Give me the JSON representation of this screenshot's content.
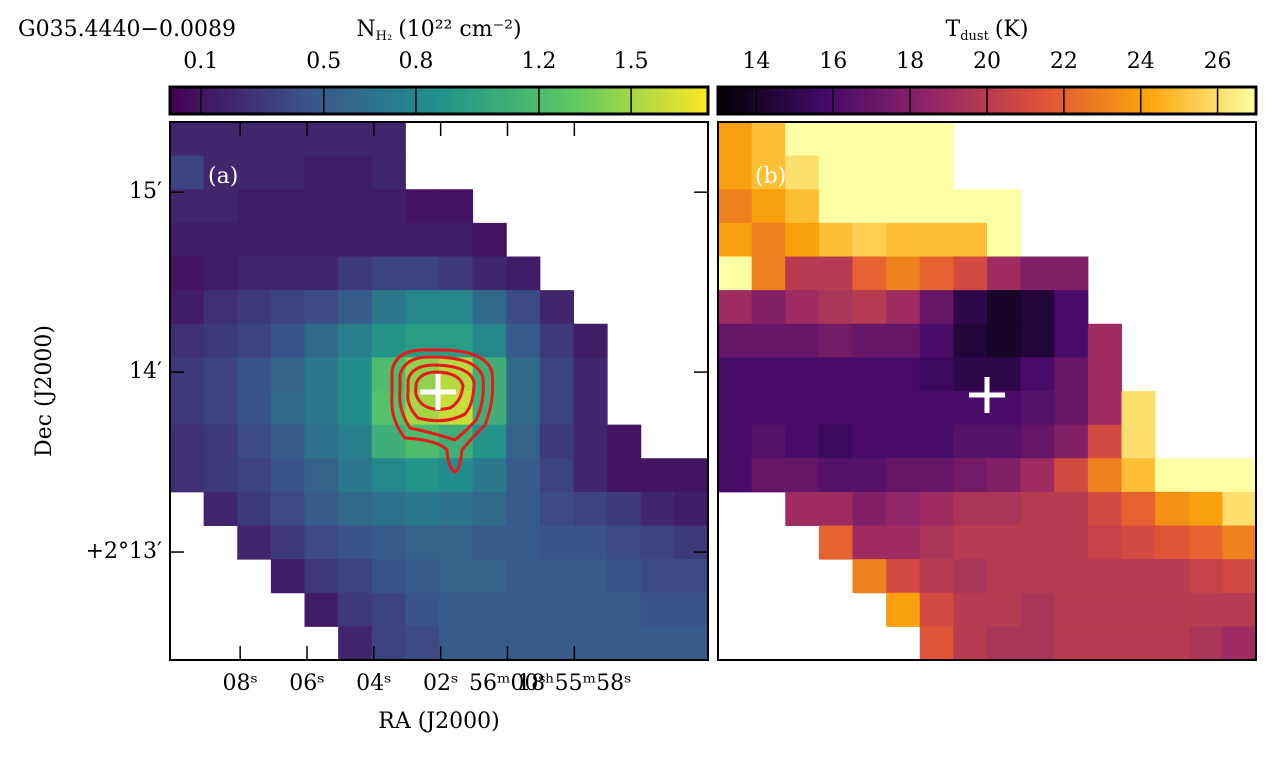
{
  "chart_data": [
    {
      "type": "heatmap",
      "title": "G035.4440−0.0089",
      "panel_label": "(a)",
      "colormap": "viridis",
      "clim": [
        0,
        1.75
      ],
      "colorbar": {
        "label_main": "N",
        "label_sub": "H₂",
        "label_tail": "(10²² cm⁻²)",
        "ticks": [
          0.1,
          0.5,
          0.8,
          1.2,
          1.5
        ]
      },
      "xlabel": "RA (J2000)",
      "ylabel": "Dec (J2000)",
      "xlim": [
        10.1,
        -6.0
      ],
      "ylim": [
        12.4,
        15.39
      ],
      "xticks": [
        {
          "value": 8,
          "label": "08ˢ"
        },
        {
          "value": 6,
          "label": "06ˢ"
        },
        {
          "value": 4,
          "label": "04ˢ"
        },
        {
          "value": 2,
          "label": "02ˢ"
        },
        {
          "value": 0,
          "label": "56ᵐ00ˢ"
        },
        {
          "value": -2,
          "label": "18ʰ55ᵐ58ˢ"
        }
      ],
      "yticks": [
        {
          "value": 15,
          "label": "15′"
        },
        {
          "value": 14,
          "label": "14′"
        },
        {
          "value": 13,
          "label": "+2°13′"
        }
      ],
      "values": [
        [
          0.2,
          0.2,
          0.2,
          0.2,
          0.2,
          0.2,
          0.2,
          null,
          null,
          null,
          null,
          null,
          null,
          null,
          null,
          null
        ],
        [
          0.35,
          0.2,
          0.2,
          0.2,
          0.15,
          0.15,
          0.2,
          null,
          null,
          null,
          null,
          null,
          null,
          null,
          null,
          null
        ],
        [
          0.2,
          0.2,
          0.15,
          0.15,
          0.15,
          0.15,
          0.15,
          0.1,
          0.1,
          null,
          null,
          null,
          null,
          null,
          null,
          null
        ],
        [
          0.15,
          0.15,
          0.15,
          0.15,
          0.15,
          0.15,
          0.15,
          0.15,
          0.15,
          0.1,
          null,
          null,
          null,
          null,
          null,
          null
        ],
        [
          0.1,
          0.15,
          0.2,
          0.2,
          0.2,
          0.3,
          0.35,
          0.35,
          0.3,
          0.2,
          0.15,
          null,
          null,
          null,
          null,
          null
        ],
        [
          0.15,
          0.25,
          0.3,
          0.35,
          0.4,
          0.5,
          0.7,
          0.8,
          0.8,
          0.6,
          0.4,
          0.2,
          null,
          null,
          null,
          null
        ],
        [
          0.25,
          0.3,
          0.35,
          0.45,
          0.6,
          0.75,
          0.9,
          0.95,
          0.95,
          0.8,
          0.5,
          0.3,
          0.15,
          null,
          null,
          null
        ],
        [
          0.3,
          0.35,
          0.45,
          0.55,
          0.7,
          0.85,
          1.2,
          1.45,
          1.55,
          1.1,
          0.6,
          0.35,
          0.2,
          null,
          null,
          null
        ],
        [
          0.3,
          0.35,
          0.45,
          0.6,
          0.7,
          0.85,
          1.25,
          1.5,
          1.6,
          1.1,
          0.6,
          0.35,
          0.2,
          null,
          null,
          null
        ],
        [
          0.25,
          0.3,
          0.4,
          0.5,
          0.65,
          0.75,
          1.1,
          1.2,
          1.1,
          0.9,
          0.55,
          0.3,
          0.2,
          0.1,
          null,
          null
        ],
        [
          0.25,
          0.3,
          0.35,
          0.45,
          0.55,
          0.7,
          0.8,
          0.9,
          0.85,
          0.7,
          0.5,
          0.35,
          0.2,
          0.1,
          0.1,
          0.1
        ],
        [
          null,
          0.2,
          0.3,
          0.4,
          0.5,
          0.6,
          0.65,
          0.7,
          0.65,
          0.6,
          0.5,
          0.4,
          0.35,
          0.3,
          0.2,
          0.15
        ],
        [
          null,
          null,
          0.2,
          0.3,
          0.4,
          0.45,
          0.5,
          0.55,
          0.55,
          0.5,
          0.5,
          0.45,
          0.45,
          0.4,
          0.35,
          0.3
        ],
        [
          null,
          null,
          null,
          0.15,
          0.3,
          0.35,
          0.45,
          0.5,
          0.55,
          0.55,
          0.5,
          0.5,
          0.5,
          0.45,
          0.4,
          0.4
        ],
        [
          null,
          null,
          null,
          null,
          0.15,
          0.3,
          0.35,
          0.45,
          0.5,
          0.5,
          0.5,
          0.5,
          0.5,
          0.5,
          0.45,
          0.45
        ],
        [
          null,
          null,
          null,
          null,
          null,
          0.2,
          0.35,
          0.4,
          0.5,
          0.5,
          0.5,
          0.5,
          0.5,
          0.5,
          0.5,
          0.5
        ]
      ]
    },
    {
      "type": "heatmap",
      "panel_label": "(b)",
      "colormap": "inferno",
      "clim": [
        13,
        27
      ],
      "colorbar": {
        "label_main": "T",
        "label_sub": "dust",
        "label_tail": "(K)",
        "ticks": [
          14,
          16,
          18,
          20,
          22,
          24,
          26
        ]
      },
      "values": [
        [
          24,
          25,
          27,
          27,
          27,
          27,
          27,
          null,
          null,
          null,
          null,
          null,
          null,
          null,
          null,
          null
        ],
        [
          24,
          25,
          26,
          27,
          27,
          27,
          27,
          null,
          null,
          null,
          null,
          null,
          null,
          null,
          null,
          null
        ],
        [
          23,
          24,
          25,
          27,
          27,
          27,
          27,
          27,
          27,
          null,
          null,
          null,
          null,
          null,
          null,
          null
        ],
        [
          24,
          23,
          24,
          25,
          25.5,
          25,
          25,
          25,
          27,
          null,
          null,
          null,
          null,
          null,
          null,
          null
        ],
        [
          27,
          23,
          20,
          20,
          22,
          23,
          22,
          21,
          19,
          18,
          18,
          null,
          null,
          null,
          null,
          null
        ],
        [
          19,
          18,
          19,
          19.5,
          20,
          19,
          17,
          15,
          14,
          14.5,
          16,
          null,
          null,
          null,
          null,
          null
        ],
        [
          17,
          17,
          17,
          17.5,
          17,
          17,
          16,
          14.5,
          14,
          14.5,
          16,
          19,
          null,
          null,
          null,
          null
        ],
        [
          16,
          16,
          16,
          16,
          16,
          16,
          15.5,
          15,
          15,
          16,
          17,
          19,
          null,
          null,
          null,
          null
        ],
        [
          16,
          16,
          16,
          16,
          16,
          16,
          16,
          16,
          16,
          16.5,
          17,
          19,
          26,
          null,
          null,
          null
        ],
        [
          16,
          16.5,
          16,
          15.5,
          16,
          16,
          16,
          16.5,
          16.5,
          17,
          18,
          21,
          26,
          null,
          null,
          null
        ],
        [
          16,
          17,
          17,
          16.5,
          16.5,
          17,
          17,
          17.5,
          18,
          19,
          21,
          23,
          25,
          27,
          27,
          27
        ],
        [
          null,
          null,
          19,
          19,
          18,
          18.5,
          19,
          19.5,
          19.5,
          20,
          20,
          21,
          22,
          23.5,
          24,
          26
        ],
        [
          null,
          null,
          null,
          22,
          19,
          19,
          19.5,
          20,
          20,
          20,
          20,
          20.5,
          21,
          21.5,
          22,
          23
        ],
        [
          null,
          null,
          null,
          null,
          23,
          21,
          20,
          19.5,
          20,
          20,
          20,
          20,
          20,
          20,
          20.5,
          21
        ],
        [
          null,
          null,
          null,
          null,
          null,
          24,
          21,
          20,
          20,
          19.5,
          20,
          20,
          20,
          20,
          20,
          20
        ],
        [
          null,
          null,
          null,
          null,
          null,
          null,
          21.5,
          20,
          19.5,
          19.5,
          20,
          20,
          20,
          20,
          19.5,
          19
        ]
      ]
    }
  ]
}
